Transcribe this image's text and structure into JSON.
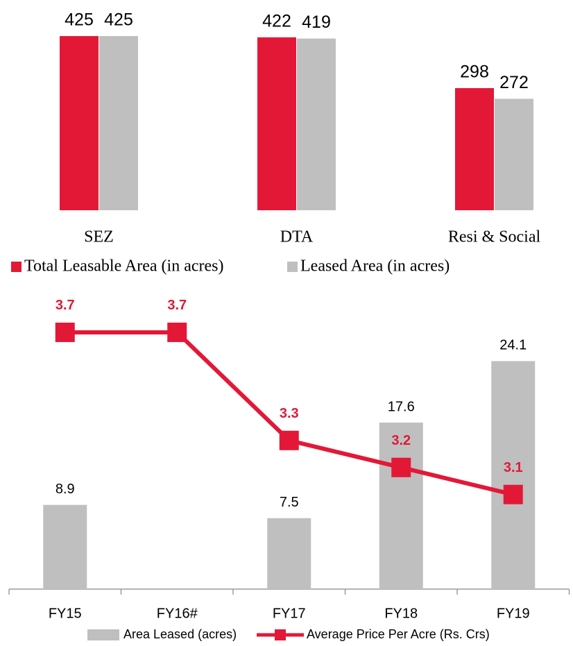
{
  "chart_data": [
    {
      "type": "bar",
      "categories": [
        "SEZ",
        "DTA",
        "Resi & Social"
      ],
      "series": [
        {
          "name": "Total Leasable Area (in acres)",
          "color": "#e31837",
          "values": [
            425,
            422,
            298
          ]
        },
        {
          "name": "Leased Area (in acres)",
          "color": "#bfbfbf",
          "values": [
            425,
            419,
            272
          ]
        }
      ],
      "ylim": [
        0,
        425
      ]
    },
    {
      "type": "bar",
      "categories": [
        "FY15",
        "FY16#",
        "FY17",
        "FY18",
        "FY19"
      ],
      "series": [
        {
          "name": "Area Leased (acres)",
          "color": "#bfbfbf",
          "values": [
            8.9,
            null,
            7.5,
            17.6,
            24.1
          ]
        },
        {
          "name": "Average Price Per Acre (Rs. Crs)",
          "color": "#e31837",
          "type": "line",
          "axis": "y2",
          "values": [
            3.7,
            3.7,
            3.3,
            3.2,
            3.1
          ]
        }
      ],
      "ylim": [
        0,
        30
      ],
      "y2lim": [
        2.75,
        3.8
      ]
    }
  ]
}
